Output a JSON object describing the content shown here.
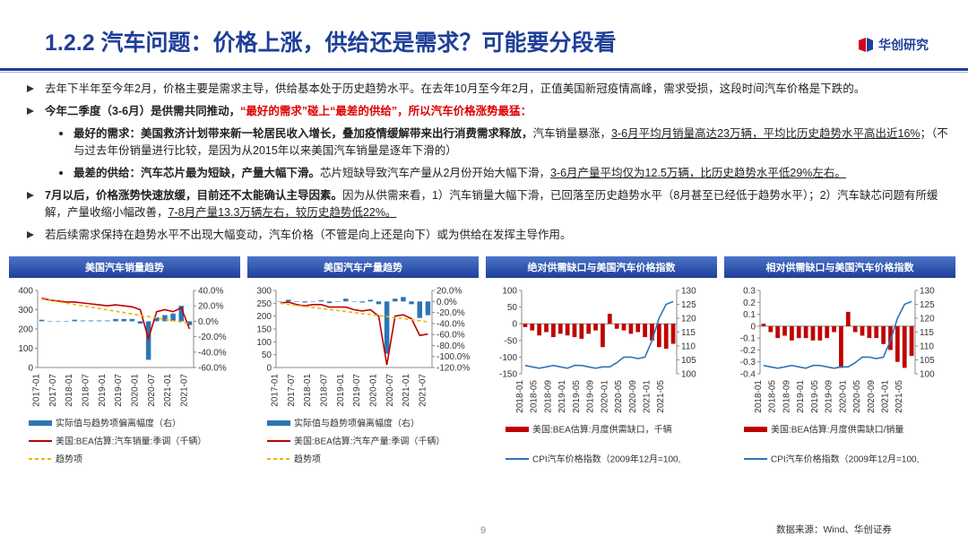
{
  "header": {
    "title": "1.2.2 汽车问题：价格上涨，供给还是需求？可能要分段看",
    "logo": "华创研究"
  },
  "bullets": [
    {
      "level": 1,
      "runs": [
        {
          "text": "去年下半年至今年2月，价格主要是需求主导，供给基本处于历史趋势水平。在去年10月至今年2月，正值美国新冠疫情高峰，需求受损，这段时间汽车价格是下跌的。",
          "style": "plain"
        }
      ]
    },
    {
      "level": 1,
      "runs": [
        {
          "text": "今年二季度（3-6月）是供需共同推动，",
          "style": "bold"
        },
        {
          "text": "“最好的需求”碰上“最差的供给”，所以汽车价格涨势最猛：",
          "style": "red"
        }
      ]
    },
    {
      "level": 2,
      "runs": [
        {
          "text": "最好的需求：美国救济计划带来新一轮居民收入增长，叠加疫情缓解带来出行消费需求释放，",
          "style": "bold"
        },
        {
          "text": "汽车销量暴涨，",
          "style": "plain"
        },
        {
          "text": "3-6月平均月销量高达23万辆，平均比历史趋势水平高出近16%",
          "style": "underline"
        },
        {
          "text": "；（不与过去年份销量进行比较，是因为从2015年以来美国汽车销量是逐年下滑的）",
          "style": "plain"
        }
      ]
    },
    {
      "level": 2,
      "runs": [
        {
          "text": "最差的供给：汽车芯片最为短缺，产量大幅下滑。",
          "style": "bold"
        },
        {
          "text": "芯片短缺导致汽车产量从2月份开始大幅下滑，",
          "style": "plain"
        },
        {
          "text": "3-6月产量平均仅为12.5万辆，比历史趋势水平低29%左右。",
          "style": "underline"
        }
      ]
    },
    {
      "level": 1,
      "runs": [
        {
          "text": "7月以后，价格涨势快速放缓，目前还不太能确认主导因素。",
          "style": "bold"
        },
        {
          "text": "因为从供需来看，1）汽车销量大幅下滑，已回落至历史趋势水平（8月甚至已经低于趋势水平）；2）汽车缺芯问题有所缓解，产量收缩小幅改善，",
          "style": "plain"
        },
        {
          "text": "7-8月产量13.3万辆左右，较历史趋势低22%。",
          "style": "underline"
        }
      ]
    },
    {
      "level": 1,
      "runs": [
        {
          "text": "若后续需求保持在趋势水平不出现大幅变动，汽车价格（不管是向上还是向下）或为供给在发挥主导作用。",
          "style": "plain"
        }
      ]
    }
  ],
  "charts": [
    {
      "type": "combo",
      "title": "美国汽车销量趋势",
      "categories": [
        "2017-01",
        null,
        "2017-07",
        null,
        "2018-01",
        null,
        "2018-07",
        null,
        "2019-01",
        null,
        "2019-07",
        null,
        "2020-01",
        null,
        "2020-07",
        null,
        "2021-01",
        null,
        "2021-07"
      ],
      "ylim": [
        0,
        400
      ],
      "yticks": [
        0,
        100,
        200,
        300,
        400
      ],
      "y2lim": [
        -60,
        40
      ],
      "y2ticks": [
        {
          "value": 40,
          "label": "40.0%"
        },
        {
          "value": 20,
          "label": "20.0%"
        },
        {
          "value": 0,
          "label": "0.0%"
        },
        {
          "value": -20,
          "label": "-20.0%"
        },
        {
          "value": -40,
          "label": "-40.0%"
        },
        {
          "value": -60,
          "label": "-60.0%"
        }
      ],
      "series": [
        {
          "name": "实际值与趋势项偏离幅度（右）",
          "kind": "bar",
          "axis": "y2",
          "color": "#2e75b6",
          "values": [
            2,
            0,
            0,
            0,
            2,
            1,
            1,
            1,
            1,
            3,
            3,
            3,
            -3,
            -50,
            5,
            8,
            10,
            20,
            -5
          ]
        },
        {
          "name": "美国:BEA估算:汽车销量:季调（千辆）",
          "kind": "line",
          "color": "#c00000",
          "values": [
            360,
            350,
            345,
            340,
            340,
            335,
            330,
            325,
            320,
            325,
            320,
            315,
            300,
            150,
            290,
            300,
            290,
            310,
            200
          ]
        },
        {
          "name": "趋势项",
          "kind": "line",
          "dash": true,
          "color": "#f0b400",
          "values": [
            355,
            348,
            341,
            334,
            327,
            320,
            313,
            306,
            299,
            292,
            285,
            278,
            271,
            264,
            257,
            250,
            243,
            236,
            229
          ]
        }
      ]
    },
    {
      "type": "combo",
      "title": "美国汽车产量趋势",
      "categories": [
        "2017-01",
        null,
        "2017-07",
        null,
        "2018-01",
        null,
        "2018-07",
        null,
        "2019-01",
        null,
        "2019-07",
        null,
        "2020-01",
        null,
        "2020-07",
        null,
        "2021-01",
        null,
        "2021-07"
      ],
      "ylim": [
        0,
        300
      ],
      "yticks": [
        0,
        50,
        100,
        150,
        200,
        250,
        300
      ],
      "y2lim": [
        -120,
        20
      ],
      "y2ticks": [
        {
          "value": 20,
          "label": "20.0%"
        },
        {
          "value": 0,
          "label": "0.0%"
        },
        {
          "value": -20,
          "label": "-20.0%"
        },
        {
          "value": -40,
          "label": "-40.0%"
        },
        {
          "value": -60,
          "label": "-60.0%"
        },
        {
          "value": -80,
          "label": "-80.0%"
        },
        {
          "value": -100,
          "label": "-100.0%"
        },
        {
          "value": -120,
          "label": "-120.0%"
        }
      ],
      "series": [
        {
          "name": "实际值与趋势项偏离幅度（右）",
          "kind": "bar",
          "axis": "y2",
          "color": "#2e75b6",
          "values": [
            0,
            3,
            0,
            -2,
            0,
            2,
            -3,
            0,
            5,
            0,
            -2,
            3,
            -5,
            -95,
            5,
            8,
            -5,
            -30,
            -25
          ]
        },
        {
          "name": "美国:BEA估算:汽车产量:季调（千辆）",
          "kind": "line",
          "color": "#c00000",
          "values": [
            250,
            255,
            245,
            240,
            245,
            245,
            235,
            235,
            235,
            225,
            220,
            225,
            200,
            10,
            200,
            205,
            190,
            125,
            130
          ]
        },
        {
          "name": "趋势项",
          "kind": "line",
          "dash": true,
          "color": "#f0b400",
          "values": [
            250,
            246,
            242,
            238,
            234,
            230,
            226,
            222,
            218,
            214,
            210,
            206,
            202,
            198,
            194,
            190,
            186,
            182,
            178
          ]
        }
      ]
    },
    {
      "type": "combo",
      "title": "绝对供需缺口与美国汽车价格指数",
      "categories": [
        "2018-01",
        null,
        "2018-05",
        null,
        "2018-09",
        null,
        "2019-01",
        null,
        "2019-05",
        null,
        "2019-09",
        null,
        "2020-01",
        null,
        "2020-05",
        null,
        "2020-09",
        null,
        "2021-01",
        null,
        "2021-05",
        null
      ],
      "ylim": [
        -150,
        100
      ],
      "yticks": [
        -150,
        -100,
        -50,
        0,
        50,
        100
      ],
      "y2lim": [
        100,
        130
      ],
      "y2ticks": [
        100,
        105,
        110,
        115,
        120,
        125,
        130
      ],
      "series": [
        {
          "name": "美国:BEA估算:月度供需缺口，千辆",
          "kind": "bar",
          "color": "#c00000",
          "values": [
            -10,
            -20,
            -35,
            -25,
            -40,
            -30,
            -35,
            -40,
            -45,
            -30,
            -20,
            -70,
            30,
            -15,
            -20,
            -30,
            -25,
            -40,
            -50,
            -70,
            -75,
            -60
          ]
        },
        {
          "name": "CPI汽车价格指数（2009年12月=100,",
          "kind": "line",
          "axis": "y2",
          "color": "#2e75b6",
          "values": [
            103,
            102.5,
            102,
            102.5,
            103,
            102.5,
            102,
            103,
            103,
            102.5,
            102,
            102.5,
            102.5,
            104,
            106,
            106,
            105.5,
            106,
            112,
            120,
            125,
            126
          ]
        }
      ]
    },
    {
      "type": "combo",
      "title": "相对供需缺口与美国汽车价格指数",
      "categories": [
        "2018-01",
        null,
        "2018-05",
        null,
        "2018-09",
        null,
        "2019-01",
        null,
        "2019-05",
        null,
        "2019-09",
        null,
        "2020-01",
        null,
        "2020-05",
        null,
        "2020-09",
        null,
        "2021-01",
        null,
        "2021-05",
        null
      ],
      "ylim": [
        -0.4,
        0.3
      ],
      "yticks": [
        -0.4,
        -0.3,
        -0.2,
        -0.1,
        0,
        0.1,
        0.2,
        0.3
      ],
      "y2lim": [
        100,
        130
      ],
      "y2ticks": [
        100,
        105,
        110,
        115,
        120,
        125,
        130
      ],
      "series": [
        {
          "name": "美国:BEA估算:月度供需缺口/销量",
          "kind": "bar",
          "color": "#c00000",
          "values": [
            0.02,
            -0.05,
            -0.1,
            -0.08,
            -0.12,
            -0.1,
            -0.1,
            -0.12,
            -0.12,
            -0.1,
            -0.05,
            -0.35,
            0.12,
            -0.05,
            -0.08,
            -0.1,
            -0.1,
            -0.15,
            -0.2,
            -0.3,
            -0.35,
            -0.25
          ]
        },
        {
          "name": "CPI汽车价格指数（2009年12月=100,",
          "kind": "line",
          "axis": "y2",
          "color": "#2e75b6",
          "values": [
            103,
            102.5,
            102,
            102.5,
            103,
            102.5,
            102,
            103,
            103,
            102.5,
            102,
            102.5,
            102.5,
            104,
            106,
            106,
            105.5,
            106,
            112,
            120,
            125,
            126
          ]
        }
      ]
    }
  ],
  "footer": {
    "page": "9",
    "source": "数据来源：Wind、华创证券"
  }
}
